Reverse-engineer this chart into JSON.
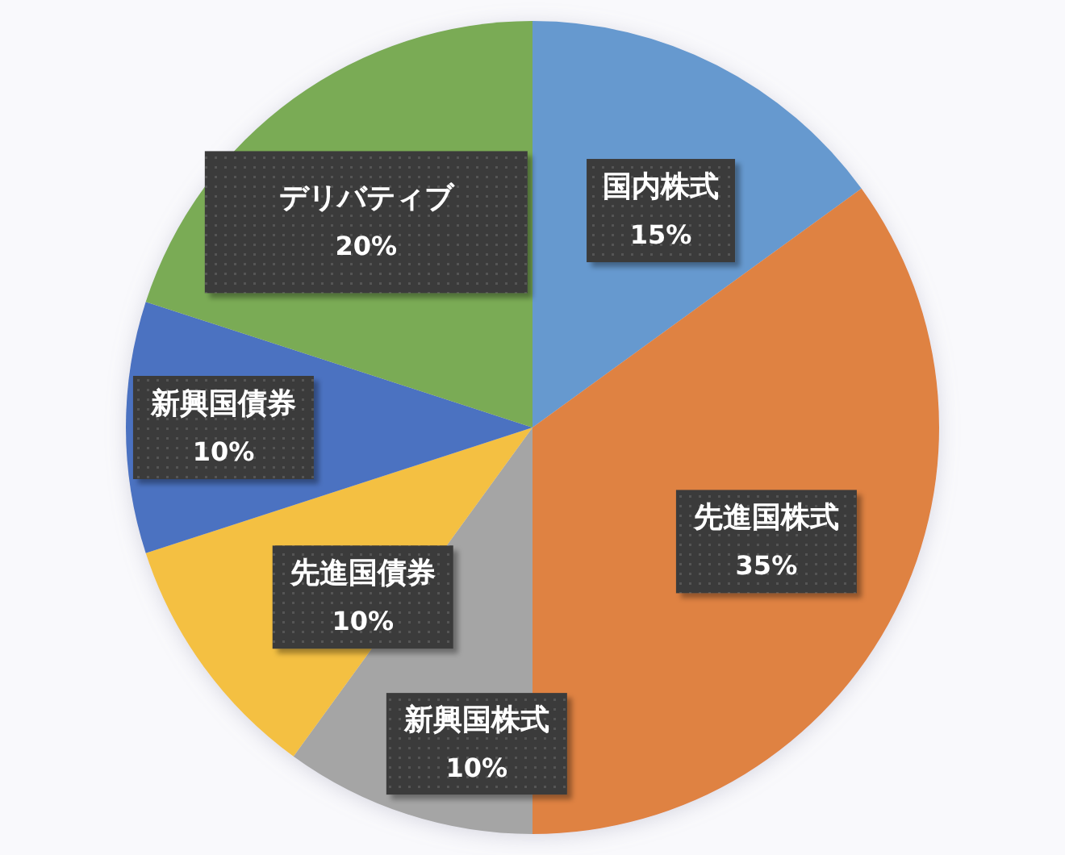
{
  "chart_data": {
    "type": "pie",
    "categories": [
      "国内株式",
      "先進国株式",
      "新興国株式",
      "先進国債券",
      "新興国債券",
      "デリバティブ"
    ],
    "values": [
      15,
      35,
      10,
      10,
      10,
      20
    ],
    "colors": [
      "#6699cf",
      "#df8243",
      "#a5a5a5",
      "#f4c042",
      "#4b72c1",
      "#7aab55"
    ],
    "value_labels": [
      "15%",
      "35%",
      "10%",
      "10%",
      "10%",
      "20%"
    ]
  }
}
